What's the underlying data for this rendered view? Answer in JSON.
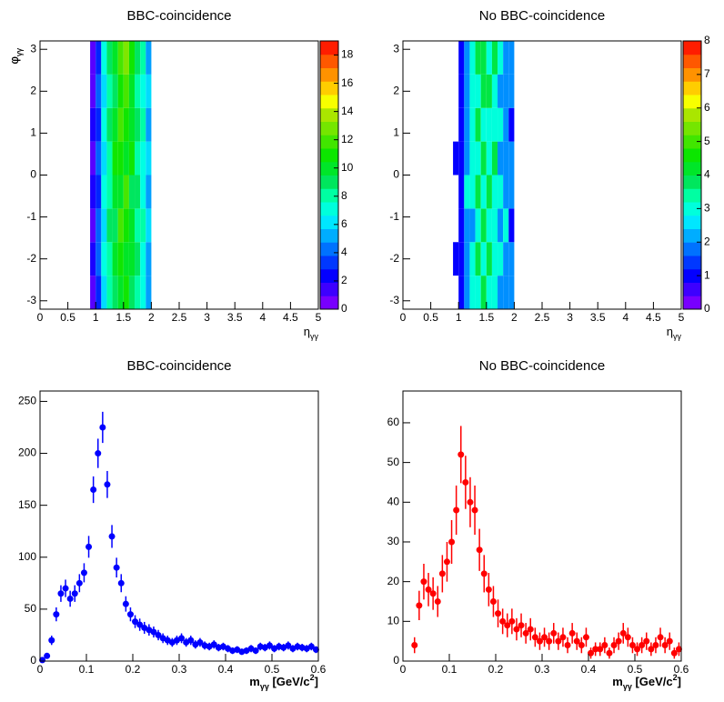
{
  "chart_data": [
    {
      "type": "heatmap",
      "title": "BBC-coincidence",
      "x_label": [
        "η",
        "γγ"
      ],
      "y_label": [
        "φ",
        "γγ"
      ],
      "xlim": [
        0,
        5
      ],
      "xticks": [
        0,
        0.5,
        1,
        1.5,
        2,
        2.5,
        3,
        3.5,
        4,
        4.5,
        5
      ],
      "ylim": [
        -3.2,
        3.2
      ],
      "yticks": [
        -3,
        -2,
        -1,
        0,
        1,
        2,
        3
      ],
      "zlim": [
        0,
        19
      ],
      "zticks": [
        0,
        2,
        4,
        6,
        8,
        10,
        12,
        14,
        16,
        18
      ],
      "x_edges": [
        0.9,
        1.0,
        1.1,
        1.2,
        1.3,
        1.4,
        1.5,
        1.6,
        1.7,
        1.8,
        1.9,
        2.0
      ],
      "y_edges": [
        -3.2,
        -2.4,
        -1.6,
        -0.8,
        0,
        0.8,
        1.6,
        2.4,
        3.2
      ],
      "z": [
        [
          1,
          3,
          6,
          8,
          9,
          10,
          11,
          9,
          8,
          7,
          5
        ],
        [
          2,
          4,
          7,
          8,
          10,
          11,
          10,
          10,
          9,
          7,
          5
        ],
        [
          1,
          4,
          6,
          9,
          9,
          12,
          11,
          10,
          8,
          8,
          6
        ],
        [
          2,
          3,
          7,
          8,
          10,
          10,
          12,
          9,
          9,
          7,
          5
        ],
        [
          1,
          4,
          6,
          8,
          11,
          11,
          10,
          11,
          8,
          7,
          6
        ],
        [
          2,
          3,
          7,
          9,
          10,
          12,
          11,
          10,
          9,
          8,
          5
        ],
        [
          1,
          4,
          6,
          8,
          9,
          11,
          12,
          10,
          8,
          7,
          6
        ],
        [
          1,
          3,
          7,
          9,
          10,
          12,
          13,
          11,
          9,
          8,
          5
        ]
      ]
    },
    {
      "type": "heatmap",
      "title": "No BBC-coincidence",
      "x_label": [
        "η",
        "γγ"
      ],
      "y_label": [
        "φ",
        "γγ"
      ],
      "xlim": [
        0,
        5
      ],
      "xticks": [
        0,
        0.5,
        1,
        1.5,
        2,
        2.5,
        3,
        3.5,
        4,
        4.5,
        5
      ],
      "ylim": [
        -3.2,
        3.2
      ],
      "yticks": [
        -3,
        -2,
        -1,
        0,
        1,
        2,
        3
      ],
      "zlim": [
        0,
        8
      ],
      "zticks": [
        0,
        1,
        2,
        3,
        4,
        5,
        6,
        7,
        8
      ],
      "x_edges": [
        0.9,
        1.0,
        1.1,
        1.2,
        1.3,
        1.4,
        1.5,
        1.6,
        1.7,
        1.8,
        1.9,
        2.0
      ],
      "y_edges": [
        -3.2,
        -2.4,
        -1.6,
        -0.8,
        0,
        0.8,
        1.6,
        2.4,
        3.2
      ],
      "z": [
        [
          0,
          1,
          2,
          3,
          3,
          4,
          3,
          3,
          2,
          2,
          2
        ],
        [
          1,
          1,
          2,
          3,
          4,
          3,
          4,
          3,
          3,
          2,
          2
        ],
        [
          0,
          1,
          2,
          2,
          3,
          4,
          3,
          3,
          2,
          3,
          1
        ],
        [
          0,
          1,
          3,
          3,
          4,
          3,
          4,
          3,
          3,
          2,
          2
        ],
        [
          1,
          1,
          2,
          3,
          3,
          4,
          3,
          4,
          2,
          2,
          2
        ],
        [
          0,
          1,
          2,
          3,
          4,
          3,
          3,
          3,
          3,
          2,
          1
        ],
        [
          0,
          1,
          2,
          3,
          3,
          4,
          4,
          3,
          2,
          2,
          2
        ],
        [
          0,
          1,
          2,
          3,
          4,
          4,
          3,
          4,
          3,
          2,
          2
        ]
      ]
    },
    {
      "type": "scatter",
      "title": "BBC-coincidence",
      "color": "#0000ff",
      "x_label": [
        "m",
        "γγ",
        " [GeV/c",
        "2",
        "]"
      ],
      "xlim": [
        0,
        0.6
      ],
      "xticks": [
        0,
        0.1,
        0.2,
        0.3,
        0.4,
        0.5,
        0.6
      ],
      "ylim": [
        0,
        260
      ],
      "yticks": [
        0,
        50,
        100,
        150,
        200,
        250
      ],
      "x": [
        0.005,
        0.015,
        0.025,
        0.035,
        0.045,
        0.055,
        0.065,
        0.075,
        0.085,
        0.095,
        0.105,
        0.115,
        0.125,
        0.135,
        0.145,
        0.155,
        0.165,
        0.175,
        0.185,
        0.195,
        0.205,
        0.215,
        0.225,
        0.235,
        0.245,
        0.255,
        0.265,
        0.275,
        0.285,
        0.295,
        0.305,
        0.315,
        0.325,
        0.335,
        0.345,
        0.355,
        0.365,
        0.375,
        0.385,
        0.395,
        0.405,
        0.415,
        0.425,
        0.435,
        0.445,
        0.455,
        0.465,
        0.475,
        0.485,
        0.495,
        0.505,
        0.515,
        0.525,
        0.535,
        0.545,
        0.555,
        0.565,
        0.575,
        0.585,
        0.595
      ],
      "values": [
        1,
        5,
        20,
        45,
        65,
        70,
        60,
        65,
        75,
        85,
        110,
        165,
        200,
        225,
        170,
        120,
        90,
        75,
        55,
        45,
        38,
        35,
        32,
        30,
        28,
        25,
        22,
        20,
        18,
        20,
        22,
        18,
        20,
        16,
        18,
        15,
        14,
        16,
        13,
        14,
        12,
        10,
        11,
        9,
        10,
        12,
        10,
        14,
        13,
        15,
        12,
        14,
        13,
        15,
        12,
        14,
        13,
        12,
        14,
        11
      ],
      "errors": [
        1,
        2.2,
        4.5,
        6.7,
        8,
        8.4,
        7.7,
        8,
        8.7,
        9.2,
        10.5,
        12.8,
        14.1,
        15,
        13,
        11,
        9.5,
        8.7,
        7.4,
        6.7,
        6.2,
        5.9,
        5.7,
        5.5,
        5.3,
        5,
        4.7,
        4.5,
        4.2,
        4.5,
        4.7,
        4.2,
        4.5,
        4,
        4.2,
        3.9,
        3.7,
        4,
        3.6,
        3.7,
        3.5,
        3.2,
        3.3,
        3,
        3.2,
        3.5,
        3.2,
        3.7,
        3.6,
        3.9,
        3.5,
        3.7,
        3.6,
        3.9,
        3.5,
        3.7,
        3.6,
        3.5,
        3.7,
        3.3
      ]
    },
    {
      "type": "scatter",
      "title": "No BBC-coincidence",
      "color": "#ff0000",
      "x_label": [
        "m",
        "γγ",
        " [GeV/c",
        "2",
        "]"
      ],
      "xlim": [
        0,
        0.6
      ],
      "xticks": [
        0,
        0.1,
        0.2,
        0.3,
        0.4,
        0.5,
        0.6
      ],
      "ylim": [
        0,
        68
      ],
      "yticks": [
        0,
        10,
        20,
        30,
        40,
        50,
        60
      ],
      "x": [
        0.025,
        0.035,
        0.045,
        0.055,
        0.065,
        0.075,
        0.085,
        0.095,
        0.105,
        0.115,
        0.125,
        0.135,
        0.145,
        0.155,
        0.165,
        0.175,
        0.185,
        0.195,
        0.205,
        0.215,
        0.225,
        0.235,
        0.245,
        0.255,
        0.265,
        0.275,
        0.285,
        0.295,
        0.305,
        0.315,
        0.325,
        0.335,
        0.345,
        0.355,
        0.365,
        0.375,
        0.385,
        0.395,
        0.405,
        0.415,
        0.425,
        0.435,
        0.445,
        0.455,
        0.465,
        0.475,
        0.485,
        0.495,
        0.505,
        0.515,
        0.525,
        0.535,
        0.545,
        0.555,
        0.565,
        0.575,
        0.585,
        0.595
      ],
      "values": [
        4,
        14,
        20,
        18,
        17,
        15,
        22,
        25,
        30,
        38,
        52,
        45,
        40,
        38,
        28,
        22,
        18,
        15,
        12,
        10,
        9,
        10,
        8,
        9,
        7,
        8,
        6,
        5,
        6,
        5,
        7,
        5,
        6,
        4,
        7,
        5,
        4,
        6,
        2,
        3,
        3,
        4,
        2,
        4,
        5,
        7,
        6,
        4,
        3,
        4,
        5,
        3,
        4,
        6,
        4,
        5,
        2,
        3
      ],
      "errors": [
        2,
        3.7,
        4.5,
        4.2,
        4.1,
        3.9,
        4.7,
        5,
        5.5,
        6.2,
        7.2,
        6.7,
        6.3,
        6.2,
        5.3,
        4.7,
        4.2,
        3.9,
        3.5,
        3.2,
        3,
        3.2,
        2.8,
        3,
        2.6,
        2.8,
        2.4,
        2.2,
        2.4,
        2.2,
        2.6,
        2.2,
        2.4,
        2,
        2.6,
        2.2,
        2,
        2.4,
        1.4,
        1.7,
        1.7,
        2,
        1.4,
        2,
        2.2,
        2.6,
        2.4,
        2,
        1.7,
        2,
        2.2,
        1.7,
        2,
        2.4,
        2,
        2.2,
        1.4,
        1.7
      ]
    }
  ]
}
